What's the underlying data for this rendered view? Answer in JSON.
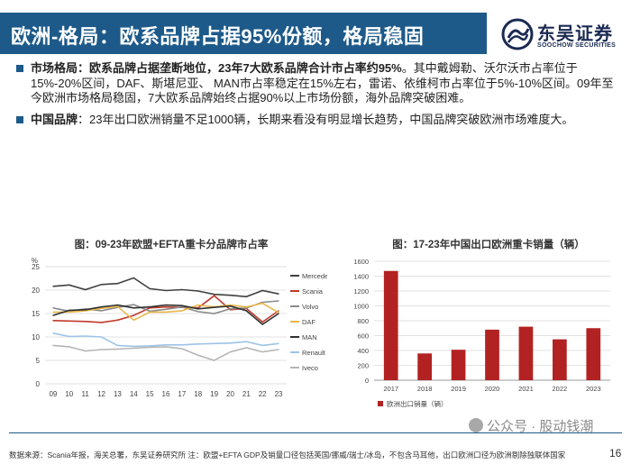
{
  "title": "欧洲-格局：欧系品牌占据95%份额，格局稳固",
  "logo": {
    "cn": "东吴证券",
    "en": "SOOCHOW SECURITIES"
  },
  "bullets": [
    {
      "lead": "市场格局：",
      "bold_rest": "欧系品牌占据垄断地位，23年7大欧系品牌合计市占率约95%",
      "text": "。其中戴姆勒、沃尔沃市占率位于15%-20%区间，DAF、斯堪尼亚、 MAN市占率稳定在15%左右，雷诺、依维柯市占率位于5%-10%区间。09年至今欧洲市场格局稳固，7大欧系品牌始终占据90%以上市场份额，海外品牌突破困难。"
    },
    {
      "lead": "中国品牌",
      "bold_rest": "",
      "text": "：23年出口欧洲销量不足1000辆，长期来看没有明显增长趋势，中国品牌突破欧洲市场难度大。"
    }
  ],
  "chart_left_title": "图：09-23年欧盟+EFTA重卡分品牌市占率",
  "chart_right_title": "图：17-23年中国出口欧洲重卡销量（辆）",
  "chart_data": [
    {
      "type": "line",
      "ylabel": "%",
      "ylim": [
        0,
        25
      ],
      "yticks": [
        0,
        5,
        10,
        15,
        20,
        25
      ],
      "categories": [
        "09",
        "10",
        "11",
        "12",
        "13",
        "14",
        "15",
        "16",
        "17",
        "18",
        "19",
        "20",
        "21",
        "22",
        "23"
      ],
      "grid": true,
      "legend": "right",
      "series": [
        {
          "name": "Mercedes",
          "color": "#404040",
          "values": [
            20.8,
            21.1,
            20.1,
            21.2,
            21.4,
            22.6,
            20.3,
            19.9,
            20.1,
            19.8,
            19.1,
            18.9,
            18.6,
            19.9,
            19.2
          ]
        },
        {
          "name": "Scania",
          "color": "#c0392b",
          "values": [
            13.5,
            13.4,
            13.3,
            13.1,
            13.6,
            14.6,
            16.2,
            16.4,
            16.3,
            16.2,
            18.8,
            15.8,
            16.1,
            13.2,
            15.6
          ]
        },
        {
          "name": "Volvo",
          "color": "#8a8a8a",
          "values": [
            16.2,
            15.5,
            16.0,
            15.6,
            16.3,
            16.9,
            15.5,
            15.9,
            16.4,
            15.4,
            15.0,
            16.0,
            16.2,
            17.4,
            17.7
          ]
        },
        {
          "name": "DAF",
          "color": "#e8b84a",
          "values": [
            15.3,
            15.3,
            15.6,
            16.1,
            16.5,
            13.6,
            15.3,
            15.3,
            15.6,
            16.8,
            16.4,
            16.8,
            16.4,
            17.2,
            15.2
          ]
        },
        {
          "name": "MAN",
          "color": "#303030",
          "values": [
            14.6,
            15.7,
            15.8,
            16.4,
            16.8,
            16.2,
            16.4,
            16.8,
            16.7,
            16.0,
            16.3,
            16.6,
            15.6,
            12.7,
            15.0
          ]
        },
        {
          "name": "Renault",
          "color": "#9dc3e6",
          "values": [
            10.8,
            10.1,
            10.2,
            10.0,
            8.2,
            8.0,
            8.1,
            8.3,
            8.3,
            8.5,
            8.6,
            8.7,
            9.0,
            8.2,
            8.6
          ]
        },
        {
          "name": "Iveco",
          "color": "#b5b5b5",
          "values": [
            8.2,
            7.9,
            7.0,
            7.3,
            7.4,
            7.6,
            7.8,
            7.9,
            7.5,
            6.1,
            5.0,
            6.8,
            7.7,
            6.8,
            7.3
          ]
        }
      ]
    },
    {
      "type": "bar",
      "ylim": [
        0,
        1600
      ],
      "yticks": [
        0,
        200,
        400,
        600,
        800,
        1000,
        1200,
        1400,
        1600
      ],
      "categories": [
        "2017",
        "2018",
        "2019",
        "2020",
        "2021",
        "2022",
        "2023"
      ],
      "series": [
        {
          "name": "欧洲出口销量（辆）",
          "color": "#b22222",
          "values": [
            1470,
            360,
            410,
            680,
            720,
            550,
            700
          ]
        }
      ],
      "grid": true,
      "legend": "bottom-left"
    }
  ],
  "footer": "数据来源：Scania年报，海关总署，东吴证券研究所 注：欧盟+EFTA GDP及销量口径包括英国/挪威/瑞士/冰岛，不包含马耳他，出口欧洲口径为欧洲剔除独联体国家",
  "page_number": "16",
  "watermark": "公众号 · 股动钱潮"
}
